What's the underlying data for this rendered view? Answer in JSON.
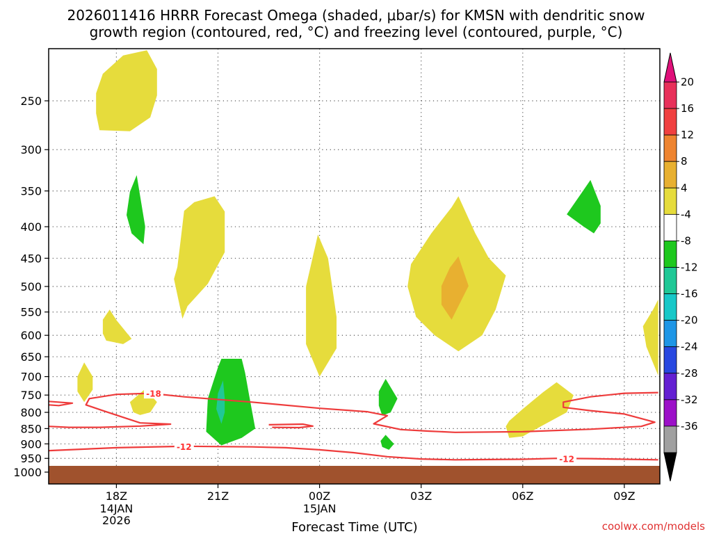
{
  "title_line1": "2026011416 HRRR Forecast Omega (shaded, μbar/s) for KMSN with dendritic snow",
  "title_line2": "growth region (contoured, red, °C) and freezing level (contoured, purple, °C)",
  "credit": "coolwx.com/models",
  "chart_data": {
    "type": "contour",
    "title": "2026011416 HRRR Forecast Omega (shaded, μbar/s) for KMSN with dendritic snow growth region (contoured, red, °C) and freezing level (contoured, purple, °C)",
    "xlabel": "Forecast Time (UTC)",
    "ylabel": "",
    "x_ticks": [
      {
        "hour": 2,
        "label": "18Z",
        "sub1": "14JAN",
        "sub2": "2026"
      },
      {
        "hour": 5,
        "label": "21Z",
        "sub1": "",
        "sub2": ""
      },
      {
        "hour": 8,
        "label": "00Z",
        "sub1": "15JAN",
        "sub2": ""
      },
      {
        "hour": 11,
        "label": "03Z",
        "sub1": "",
        "sub2": ""
      },
      {
        "hour": 14,
        "label": "06Z",
        "sub1": "",
        "sub2": ""
      },
      {
        "hour": 17,
        "label": "09Z",
        "sub1": "",
        "sub2": ""
      }
    ],
    "xlim": [
      0,
      18
    ],
    "y_ticks": [
      250,
      300,
      350,
      400,
      450,
      500,
      550,
      600,
      650,
      700,
      750,
      800,
      850,
      900,
      950,
      1000
    ],
    "ylim": [
      200,
      1000
    ],
    "y_scale": "log_pressure",
    "colorbar": {
      "levels": [
        20,
        16,
        12,
        8,
        4,
        -4,
        -8,
        -12,
        -16,
        -20,
        -24,
        -28,
        -32,
        -36
      ],
      "bands": [
        {
          "color": "#e8305a"
        },
        {
          "color": "#f04040"
        },
        {
          "color": "#ee8430"
        },
        {
          "color": "#e8b030"
        },
        {
          "color": "#e6dc3c"
        },
        {
          "color": "#ffffff"
        },
        {
          "color": "#1ec81e"
        },
        {
          "color": "#20c896"
        },
        {
          "color": "#18c8c8"
        },
        {
          "color": "#1e96e6"
        },
        {
          "color": "#2848e0"
        },
        {
          "color": "#6420d2"
        },
        {
          "color": "#9c10c8"
        },
        {
          "color": "#a0a0a0"
        }
      ],
      "top_arrow_color": "#e0107a",
      "bottom_arrow_color": "#000000"
    },
    "ground_color": "#a0522d",
    "omega_regions": [
      {
        "value": 4,
        "color": "#e6dc3c",
        "pts": [
          [
            1.4,
            243
          ],
          [
            1.6,
            226
          ],
          [
            2.2,
            211
          ],
          [
            2.9,
            207
          ],
          [
            3.2,
            222
          ],
          [
            3.2,
            245
          ],
          [
            3.0,
            266
          ],
          [
            2.4,
            280
          ],
          [
            1.5,
            279
          ],
          [
            1.4,
            262
          ]
        ]
      },
      {
        "value": 4,
        "color": "#e6dc3c",
        "pts": [
          [
            3.8,
            465
          ],
          [
            3.9,
            420
          ],
          [
            4.0,
            377
          ],
          [
            4.3,
            365
          ],
          [
            4.9,
            357
          ],
          [
            5.2,
            378
          ],
          [
            5.2,
            440
          ],
          [
            4.7,
            495
          ],
          [
            4.1,
            538
          ],
          [
            3.95,
            564
          ],
          [
            3.7,
            486
          ]
        ]
      },
      {
        "value": 4,
        "color": "#e6dc3c",
        "pts": [
          [
            1.6,
            566
          ],
          [
            1.8,
            545
          ],
          [
            2.0,
            567
          ],
          [
            2.45,
            608
          ],
          [
            2.2,
            620
          ],
          [
            1.7,
            612
          ],
          [
            1.6,
            596
          ]
        ]
      },
      {
        "value": 4,
        "color": "#e6dc3c",
        "pts": [
          [
            0.85,
            700
          ],
          [
            1.05,
            664
          ],
          [
            1.3,
            700
          ],
          [
            1.3,
            735
          ],
          [
            1.05,
            770
          ],
          [
            0.85,
            740
          ]
        ]
      },
      {
        "value": 4,
        "color": "#e6dc3c",
        "pts": [
          [
            2.4,
            770
          ],
          [
            2.85,
            733
          ],
          [
            3.2,
            770
          ],
          [
            3.0,
            800
          ],
          [
            2.7,
            808
          ],
          [
            2.5,
            800
          ]
        ]
      },
      {
        "value": 4,
        "color": "#e6dc3c",
        "pts": [
          [
            7.6,
            500
          ],
          [
            7.95,
            412
          ],
          [
            8.25,
            450
          ],
          [
            8.5,
            560
          ],
          [
            8.5,
            630
          ],
          [
            8.0,
            700
          ],
          [
            7.6,
            620
          ]
        ]
      },
      {
        "value": 4,
        "color": "#e6dc3c",
        "pts": [
          [
            10.7,
            460
          ],
          [
            11.3,
            410
          ],
          [
            11.9,
            372
          ],
          [
            12.1,
            357
          ],
          [
            12.6,
            410
          ],
          [
            13.0,
            450
          ],
          [
            13.5,
            480
          ],
          [
            13.2,
            545
          ],
          [
            12.8,
            600
          ],
          [
            12.1,
            637
          ],
          [
            11.4,
            600
          ],
          [
            10.85,
            560
          ],
          [
            10.6,
            500
          ]
        ]
      },
      {
        "value": 4,
        "color": "#e6dc3c",
        "pts": [
          [
            13.5,
            843
          ],
          [
            13.6,
            826
          ],
          [
            14.0,
            790
          ],
          [
            14.6,
            742
          ],
          [
            15.0,
            715
          ],
          [
            15.5,
            750
          ],
          [
            15.3,
            800
          ],
          [
            14.5,
            845
          ],
          [
            14.0,
            875
          ],
          [
            13.6,
            880
          ]
        ]
      },
      {
        "value": 4,
        "color": "#e6dc3c",
        "pts": [
          [
            18.0,
            525
          ],
          [
            17.85,
            545
          ],
          [
            17.55,
            580
          ],
          [
            17.65,
            626
          ],
          [
            18.0,
            697
          ]
        ]
      },
      {
        "value": 8,
        "color": "#e8b030",
        "pts": [
          [
            11.6,
            499
          ],
          [
            11.85,
            466
          ],
          [
            12.1,
            447
          ],
          [
            12.4,
            499
          ],
          [
            12.1,
            538
          ],
          [
            11.9,
            566
          ],
          [
            11.6,
            535
          ]
        ]
      },
      {
        "value": -4,
        "color": "#1ec81e",
        "pts": [
          [
            2.4,
            351
          ],
          [
            2.6,
            330
          ],
          [
            2.85,
            400
          ],
          [
            2.8,
            427
          ],
          [
            2.45,
            410
          ],
          [
            2.3,
            383
          ]
        ]
      },
      {
        "value": -4,
        "color": "#1ec81e",
        "pts": [
          [
            15.3,
            382
          ],
          [
            15.7,
            355
          ],
          [
            16.0,
            336
          ],
          [
            16.3,
            370
          ],
          [
            16.3,
            395
          ],
          [
            16.1,
            410
          ],
          [
            15.8,
            400
          ]
        ]
      },
      {
        "value": -4,
        "color": "#1ec81e",
        "pts": [
          [
            5.0,
            676
          ],
          [
            5.1,
            655
          ],
          [
            5.7,
            655
          ],
          [
            5.8,
            690
          ],
          [
            5.9,
            740
          ],
          [
            6.1,
            850
          ],
          [
            5.7,
            880
          ],
          [
            5.1,
            905
          ],
          [
            4.65,
            860
          ],
          [
            4.7,
            760
          ]
        ]
      },
      {
        "value": -4,
        "color": "#1ec81e",
        "pts": [
          [
            9.75,
            740
          ],
          [
            9.95,
            706
          ],
          [
            10.3,
            760
          ],
          [
            10.1,
            800
          ],
          [
            9.85,
            810
          ],
          [
            9.75,
            780
          ]
        ]
      },
      {
        "value": -4,
        "color": "#1ec81e",
        "pts": [
          [
            9.8,
            890
          ],
          [
            9.95,
            870
          ],
          [
            10.2,
            900
          ],
          [
            10.05,
            920
          ],
          [
            9.85,
            910
          ]
        ]
      },
      {
        "value": -8,
        "color": "#20c896",
        "pts": [
          [
            5.0,
            745
          ],
          [
            5.15,
            710
          ],
          [
            5.2,
            760
          ],
          [
            5.2,
            800
          ],
          [
            5.1,
            835
          ],
          [
            4.95,
            790
          ]
        ]
      }
    ],
    "dgz_contours": [
      {
        "value": -12,
        "label": "-12",
        "label_at": [
          4.0,
          910
        ],
        "pts": [
          [
            0,
            923
          ],
          [
            2,
            913
          ],
          [
            4,
            908
          ],
          [
            6,
            910
          ],
          [
            7,
            913
          ],
          [
            8,
            920
          ],
          [
            9,
            930
          ],
          [
            10,
            944
          ],
          [
            11,
            952
          ],
          [
            12,
            955
          ],
          [
            13,
            954
          ],
          [
            14,
            953
          ],
          [
            15,
            950
          ],
          [
            16,
            951
          ],
          [
            17,
            953
          ],
          [
            18,
            955
          ]
        ]
      },
      {
        "value": -12,
        "label": "-12",
        "label_at": [
          15.3,
          952
        ],
        "pts": []
      },
      {
        "value": -18,
        "label": "-18",
        "label_at": [
          3.1,
          746
        ],
        "pts": [
          [
            18,
            743
          ],
          [
            17,
            745
          ],
          [
            16,
            755
          ],
          [
            15.2,
            770
          ],
          [
            15.2,
            785
          ],
          [
            16,
            795
          ],
          [
            17,
            805
          ],
          [
            17.9,
            830
          ],
          [
            17.5,
            843
          ],
          [
            16,
            852
          ],
          [
            14,
            860
          ],
          [
            12,
            862
          ],
          [
            11.2,
            858
          ],
          [
            10.4,
            853
          ],
          [
            9.6,
            835
          ],
          [
            10,
            810
          ],
          [
            9.4,
            798
          ],
          [
            8,
            788
          ],
          [
            6,
            770
          ],
          [
            4,
            755
          ],
          [
            3,
            745
          ],
          [
            2,
            748
          ],
          [
            1.2,
            760
          ],
          [
            1.1,
            778
          ],
          [
            1.6,
            795
          ],
          [
            2.2,
            815
          ],
          [
            2.7,
            832
          ],
          [
            3.6,
            836
          ],
          [
            2.7,
            842
          ],
          [
            1.5,
            846
          ],
          [
            0.6,
            846
          ],
          [
            0,
            843
          ]
        ]
      },
      {
        "value": -18,
        "label": "",
        "label_at": null,
        "pts": [
          [
            0,
            768
          ],
          [
            0.7,
            773
          ],
          [
            0.3,
            780
          ],
          [
            0,
            778
          ]
        ]
      },
      {
        "value": -18,
        "label": "",
        "label_at": null,
        "pts": [
          [
            6.5,
            838
          ],
          [
            7.5,
            836
          ],
          [
            7.8,
            842
          ],
          [
            7.4,
            847
          ],
          [
            6.6,
            846
          ]
        ]
      }
    ]
  }
}
